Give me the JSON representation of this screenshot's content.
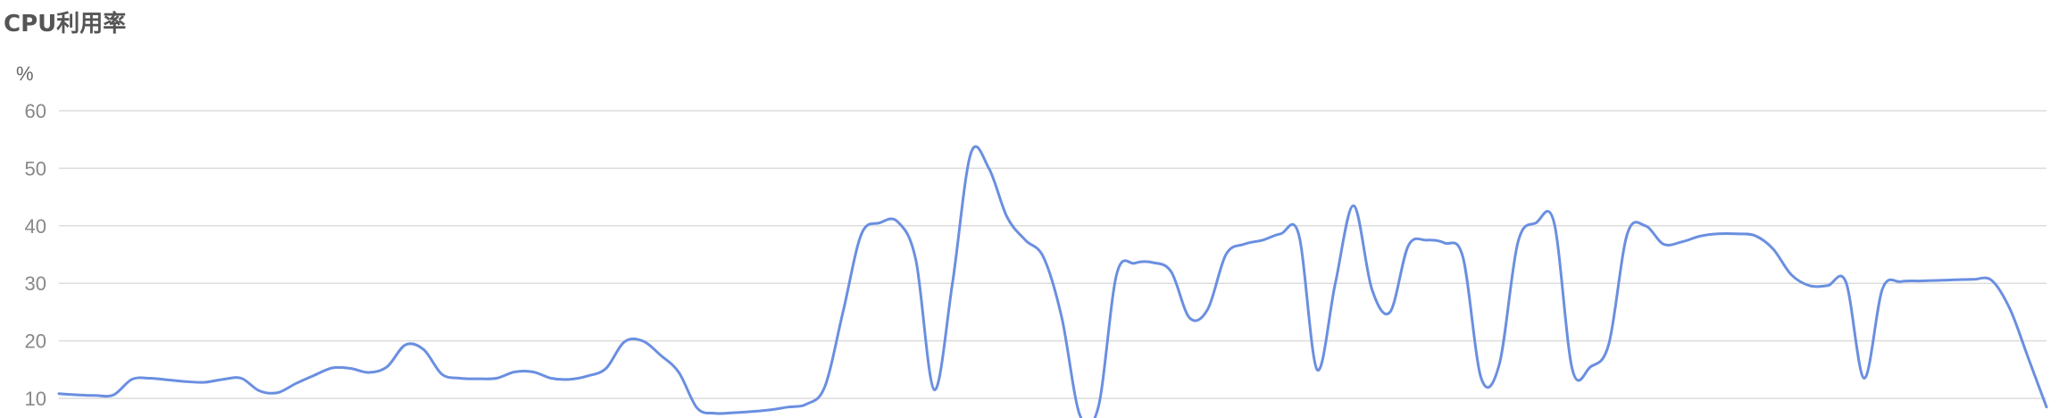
{
  "chart_data": {
    "type": "line",
    "title": "CPU利用率",
    "ylabel": "%",
    "y_ticks": [
      "60",
      "50",
      "40",
      "30",
      "20",
      "10"
    ],
    "ylim": [
      10,
      60
    ],
    "grid": true,
    "series": [
      {
        "color": "#6a8fe0",
        "values": [
          10.8,
          10.6,
          10.5,
          10.6,
          13.3,
          13.5,
          13.2,
          12.9,
          12.8,
          13.3,
          13.5,
          11.3,
          11.0,
          12.6,
          14.0,
          15.3,
          15.2,
          14.5,
          15.5,
          19.3,
          18.5,
          14.2,
          13.5,
          13.4,
          13.5,
          14.6,
          14.6,
          13.5,
          13.3,
          13.9,
          15.2,
          19.8,
          20.0,
          17.5,
          14.5,
          8.3,
          7.4,
          7.5,
          7.7,
          8.0,
          8.5,
          9.0,
          12.0,
          25.0,
          38.5,
          40.5,
          40.7,
          34.0,
          11.5,
          30.0,
          52.5,
          50.0,
          41.5,
          37.5,
          34.5,
          24.0,
          7.0,
          8.5,
          31.5,
          33.5,
          33.6,
          32.0,
          24.0,
          25.5,
          35.0,
          36.8,
          37.5,
          38.6,
          38.4,
          15.0,
          30.0,
          43.5,
          29.0,
          25.0,
          36.5,
          37.5,
          37.0,
          34.5,
          13.5,
          16.0,
          37.0,
          40.5,
          40.5,
          15.0,
          15.5,
          19.5,
          38.5,
          40.0,
          36.8,
          37.2,
          38.2,
          38.6,
          38.6,
          38.3,
          36.0,
          31.5,
          29.6,
          29.6,
          30.2,
          13.5,
          29.0,
          30.3,
          30.4,
          30.5,
          30.6,
          30.7,
          30.5,
          25.5,
          17.0,
          8.5
        ]
      }
    ]
  }
}
